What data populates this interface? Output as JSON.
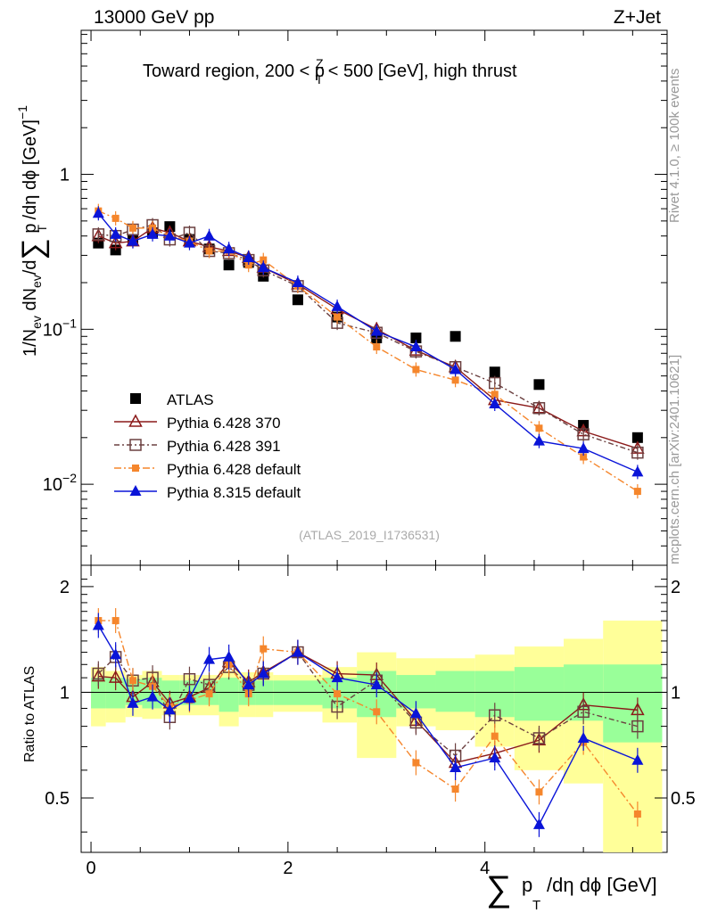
{
  "header": {
    "left": "13000 GeV pp",
    "right": "Z+Jet",
    "panel_title": "Toward region, 200 < p",
    "panel_title_sup": "Z",
    "panel_title_sub": "T",
    "panel_title_tail": " < 500 [GeV], high thrust",
    "analysis_id": "(ATLAS_2019_I1736531)",
    "side_top": "Rivet 4.1.0, ≥ 100k events",
    "side_bottom": "mcplots.cern.ch [arXiv:2401.10621]"
  },
  "axes": {
    "ylabel_top": "1/N",
    "ylabel_bottom": "Ratio to ATLAS",
    "xlabel": "p",
    "xlabel_tail": "/dη dϕ [GeV]",
    "x_ticks": [
      "0",
      "2",
      "4"
    ],
    "y_top_ticks": [
      "1",
      "10",
      "10"
    ],
    "y_top_exp": [
      "",
      "−1",
      "−2"
    ],
    "y_ratio_ticks": [
      "2",
      "1",
      "0.5"
    ]
  },
  "legend": [
    {
      "label": "ATLAS",
      "color": "#000000"
    },
    {
      "label": "Pythia 6.428 370",
      "color": "#8b1a1a"
    },
    {
      "label": "Pythia 6.428 391",
      "color": "#6b4040"
    },
    {
      "label": "Pythia 6.428 default",
      "color": "#f5862c"
    },
    {
      "label": "Pythia 8.315 default",
      "color": "#0a14d8"
    }
  ],
  "chart_data": {
    "type": "scatter",
    "title": "Toward region, 200 < pT^Z < 500 [GeV], high thrust",
    "xlabel": "∑ pT /dη dϕ [GeV]",
    "ylabel": "1/Nev dNev/d∑ pT /dη dϕ [GeV]^-1",
    "xlim": [
      -0.1,
      5.85
    ],
    "ylim": [
      0.003,
      8.5
    ],
    "yscale": "log",
    "ratio_ylim": [
      0.35,
      2.3
    ],
    "x": [
      0.075,
      0.25,
      0.425,
      0.625,
      0.8,
      1.0,
      1.2,
      1.4,
      1.6,
      1.75,
      2.1,
      2.5,
      2.9,
      3.3,
      3.7,
      4.1,
      4.55,
      5.0,
      5.55
    ],
    "series": [
      {
        "name": "ATLAS",
        "color": "#000000",
        "marker": "square",
        "values": [
          0.36,
          0.325,
          0.38,
          0.42,
          0.46,
          0.38,
          0.33,
          0.26,
          0.27,
          0.22,
          0.155,
          0.12,
          0.088,
          0.088,
          0.09,
          0.053,
          0.044,
          0.024,
          0.02
        ],
        "ratio": [
          1,
          1,
          1,
          1,
          1,
          1,
          1,
          1,
          1,
          1,
          1,
          1,
          1,
          1,
          1,
          1,
          1,
          1,
          1
        ]
      },
      {
        "name": "Pythia 6.428 370",
        "color": "#8b1a1a",
        "marker": "triangle-open",
        "dash": "",
        "values": [
          0.4,
          0.36,
          0.37,
          0.45,
          0.42,
          0.37,
          0.34,
          0.32,
          0.29,
          0.25,
          0.195,
          0.135,
          0.1,
          0.073,
          0.057,
          0.035,
          0.031,
          0.022,
          0.017
        ],
        "ratio": [
          1.11,
          1.1,
          0.97,
          1.07,
          0.93,
          0.97,
          1.03,
          1.22,
          1.07,
          1.14,
          1.3,
          1.13,
          1.12,
          0.83,
          0.63,
          0.67,
          0.73,
          0.92,
          0.89
        ]
      },
      {
        "name": "Pythia 6.428 391",
        "color": "#6b4040",
        "marker": "square-open",
        "dash": "6,3,2,3",
        "values": [
          0.41,
          0.4,
          0.44,
          0.47,
          0.38,
          0.42,
          0.32,
          0.31,
          0.28,
          0.24,
          0.19,
          0.11,
          0.095,
          0.072,
          0.057,
          0.045,
          0.031,
          0.021,
          0.016
        ],
        "ratio": [
          1.13,
          1.26,
          1.08,
          1.1,
          0.85,
          1.09,
          1.05,
          1.18,
          1.05,
          1.13,
          1.3,
          0.91,
          1.08,
          0.82,
          0.66,
          0.86,
          0.74,
          0.88,
          0.8
        ]
      },
      {
        "name": "Pythia 6.428 default",
        "color": "#f5862c",
        "marker": "square",
        "dash": "8,3,2,3",
        "values": [
          0.58,
          0.52,
          0.45,
          0.45,
          0.4,
          0.37,
          0.32,
          0.32,
          0.26,
          0.28,
          0.19,
          0.12,
          0.077,
          0.055,
          0.047,
          0.038,
          0.023,
          0.015,
          0.009
        ],
        "ratio": [
          1.6,
          1.6,
          1.08,
          1.04,
          0.91,
          0.95,
          0.99,
          1.2,
          0.99,
          1.33,
          1.3,
          0.99,
          0.88,
          0.63,
          0.53,
          0.75,
          0.52,
          0.72,
          0.45
        ]
      },
      {
        "name": "Pythia 8.315 default",
        "color": "#0a14d8",
        "marker": "triangle",
        "dash": "",
        "values": [
          0.56,
          0.41,
          0.37,
          0.41,
          0.4,
          0.36,
          0.4,
          0.33,
          0.29,
          0.25,
          0.2,
          0.14,
          0.097,
          0.077,
          0.055,
          0.033,
          0.019,
          0.017,
          0.012
        ],
        "ratio": [
          1.55,
          1.28,
          0.93,
          0.97,
          0.89,
          0.96,
          1.24,
          1.26,
          1.05,
          1.13,
          1.3,
          1.1,
          1.05,
          0.87,
          0.61,
          0.65,
          0.42,
          0.74,
          0.64
        ]
      }
    ],
    "band_bins": [
      [
        0.0,
        0.15
      ],
      [
        0.15,
        0.35
      ],
      [
        0.35,
        0.52
      ],
      [
        0.52,
        0.72
      ],
      [
        0.72,
        0.9
      ],
      [
        0.9,
        1.1
      ],
      [
        1.1,
        1.3
      ],
      [
        1.3,
        1.5
      ],
      [
        1.5,
        1.67
      ],
      [
        1.67,
        1.85
      ],
      [
        1.85,
        2.35
      ],
      [
        2.35,
        2.7
      ],
      [
        2.7,
        3.1
      ],
      [
        3.1,
        3.5
      ],
      [
        3.5,
        3.9
      ],
      [
        3.9,
        4.3
      ],
      [
        4.3,
        4.8
      ],
      [
        4.8,
        5.2
      ],
      [
        5.2,
        5.8
      ]
    ],
    "band_green": [
      [
        0.9,
        1.1
      ],
      [
        0.9,
        1.1
      ],
      [
        0.92,
        1.09
      ],
      [
        0.9,
        1.1
      ],
      [
        0.92,
        1.08
      ],
      [
        0.92,
        1.08
      ],
      [
        0.92,
        1.08
      ],
      [
        0.88,
        1.1
      ],
      [
        0.92,
        1.08
      ],
      [
        0.92,
        1.08
      ],
      [
        0.92,
        1.08
      ],
      [
        0.9,
        1.1
      ],
      [
        0.85,
        1.15
      ],
      [
        0.9,
        1.12
      ],
      [
        0.88,
        1.15
      ],
      [
        0.85,
        1.15
      ],
      [
        0.83,
        1.18
      ],
      [
        0.83,
        1.2
      ],
      [
        0.72,
        1.2
      ]
    ],
    "band_yellow": [
      [
        0.8,
        1.18
      ],
      [
        0.82,
        1.15
      ],
      [
        0.85,
        1.12
      ],
      [
        0.84,
        1.15
      ],
      [
        0.86,
        1.12
      ],
      [
        0.86,
        1.12
      ],
      [
        0.86,
        1.12
      ],
      [
        0.8,
        1.15
      ],
      [
        0.85,
        1.14
      ],
      [
        0.85,
        1.14
      ],
      [
        0.88,
        1.12
      ],
      [
        0.82,
        1.18
      ],
      [
        0.65,
        1.3
      ],
      [
        0.8,
        1.25
      ],
      [
        0.78,
        1.25
      ],
      [
        0.7,
        1.28
      ],
      [
        0.6,
        1.35
      ],
      [
        0.55,
        1.42
      ],
      [
        0.35,
        1.6
      ]
    ]
  }
}
